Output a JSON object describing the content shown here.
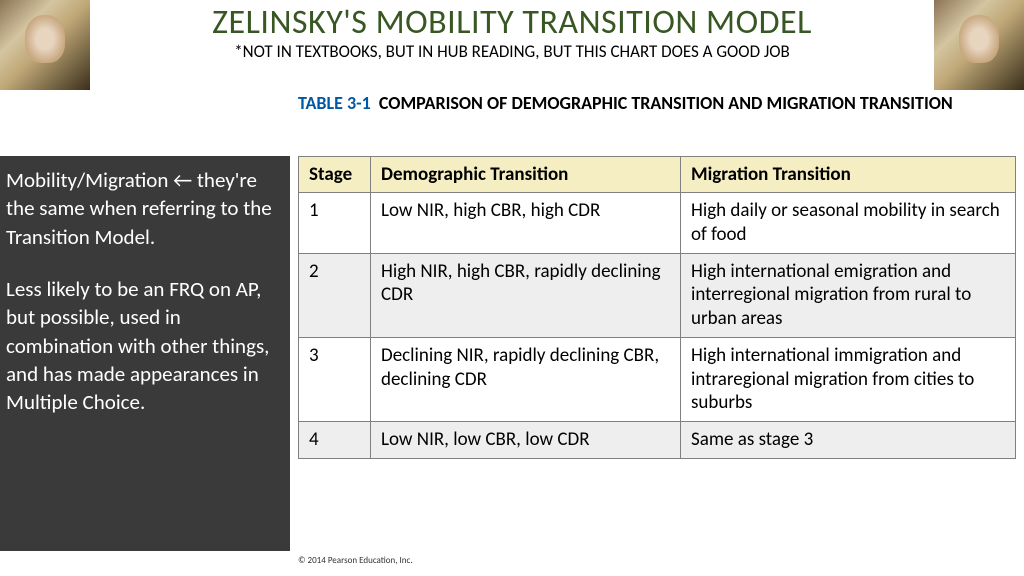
{
  "header": {
    "title": "ZELINSKY'S MOBILITY TRANSITION MODEL",
    "subtitle": "*NOT IN TEXTBOOKS, BUT IN HUB READING, BUT THIS CHART DOES A GOOD JOB",
    "title_color": "#385723"
  },
  "caption": {
    "prefix": "TABLE 3-1",
    "text": "COMPARISON OF DEMOGRAPHIC TRANSITION AND MIGRATION TRANSITION",
    "prefix_color": "#0058a5"
  },
  "sidebar": {
    "bg": "#3a3a3a",
    "p1": "Mobility/Migration ← they're the same when referring to the Transition Model.",
    "p2": "Less likely to be an FRQ on AP, but possible, used in combination with other things, and has made appearances in Multiple Choice."
  },
  "table": {
    "header_bg": "#f5eec2",
    "row_alt_bg": "#eeeeee",
    "headers": [
      "Stage",
      "Demographic Transition",
      "Migration Transition"
    ],
    "rows": [
      {
        "stage": "1",
        "demo": "Low NIR, high CBR, high CDR",
        "mig": "High daily or seasonal mobility in search of food"
      },
      {
        "stage": "2",
        "demo": "High NIR, high CBR, rapidly declining CDR",
        "mig": "High international emigration and interregional migration from rural to urban areas"
      },
      {
        "stage": "3",
        "demo": "Declining NIR, rapidly declining CBR, declining CDR",
        "mig": "High international immigration and intraregional migration from cities to suburbs"
      },
      {
        "stage": "4",
        "demo": "Low NIR, low CBR, low CDR",
        "mig": "Same as stage 3"
      }
    ]
  },
  "credit": "© 2014 Pearson Education, Inc."
}
